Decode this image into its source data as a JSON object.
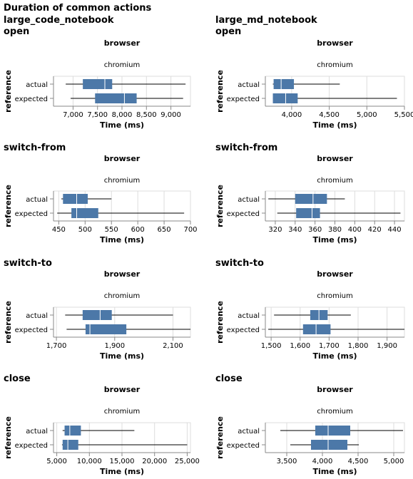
{
  "title": "Duration of common actions",
  "column_header_label": "browser",
  "column_value": "chromium",
  "x_axis_label": "Time (ms)",
  "y_axis_label": "reference",
  "categories": [
    "actual",
    "expected"
  ],
  "colors": {
    "box": "#4c78a8",
    "median": "#ffffff",
    "whisker": "#000000",
    "grid": "#dddddd",
    "border": "#dddddd"
  },
  "chart_data": [
    {
      "type": "boxplot",
      "notebook": "large_code_notebook",
      "action": "open",
      "ylabel": "reference",
      "xlabel": "Time (ms)",
      "xlim": [
        6600,
        9400
      ],
      "ticks": [
        7000,
        7500,
        8000,
        8500,
        9000
      ],
      "tick_labels": [
        "7,000",
        "7,500",
        "8,000",
        "8,500",
        "9,000"
      ],
      "boxes": [
        {
          "category": "actual",
          "min": 6850,
          "q1": 7200,
          "median": 7650,
          "q3": 7800,
          "max": 9300
        },
        {
          "category": "expected",
          "min": 6950,
          "q1": 7450,
          "median": 8050,
          "q3": 8300,
          "max": 9250
        }
      ]
    },
    {
      "type": "boxplot",
      "notebook": "large_md_notebook",
      "action": "open",
      "ylabel": "reference",
      "xlabel": "Time (ms)",
      "xlim": [
        3650,
        5500
      ],
      "ticks": [
        4000,
        4500,
        5000,
        5500
      ],
      "tick_labels": [
        "4,000",
        "4,500",
        "5,000",
        "5,500"
      ],
      "boxes": [
        {
          "category": "actual",
          "min": 3750,
          "q1": 3760,
          "median": 3860,
          "q3": 4030,
          "max": 4640
        },
        {
          "category": "expected",
          "min": 3750,
          "q1": 3750,
          "median": 3920,
          "q3": 4080,
          "max": 5400
        }
      ]
    },
    {
      "type": "boxplot",
      "notebook": "large_code_notebook",
      "action": "switch-from",
      "ylabel": "reference",
      "xlabel": "Time (ms)",
      "xlim": [
        440,
        700
      ],
      "ticks": [
        450,
        500,
        550,
        600,
        650,
        700
      ],
      "tick_labels": [
        "450",
        "500",
        "550",
        "600",
        "650",
        "700"
      ],
      "boxes": [
        {
          "category": "actual",
          "min": 455,
          "q1": 458,
          "median": 484,
          "q3": 505,
          "max": 550
        },
        {
          "category": "expected",
          "min": 447,
          "q1": 474,
          "median": 484,
          "q3": 525,
          "max": 688
        }
      ]
    },
    {
      "type": "boxplot",
      "notebook": "large_md_notebook",
      "action": "switch-from",
      "ylabel": "reference",
      "xlabel": "Time (ms)",
      "xlim": [
        310,
        450
      ],
      "ticks": [
        320,
        340,
        360,
        380,
        400,
        420,
        440
      ],
      "tick_labels": [
        "320",
        "340",
        "360",
        "380",
        "400",
        "420",
        "440"
      ],
      "boxes": [
        {
          "category": "actual",
          "min": 313,
          "q1": 340,
          "median": 358,
          "q3": 372,
          "max": 390
        },
        {
          "category": "expected",
          "min": 322,
          "q1": 341,
          "median": 357,
          "q3": 365,
          "max": 446
        }
      ]
    },
    {
      "type": "boxplot",
      "notebook": "large_code_notebook",
      "action": "switch-to",
      "ylabel": "reference",
      "xlabel": "Time (ms)",
      "xlim": [
        1690,
        2160
      ],
      "ticks": [
        1700,
        1900,
        2100
      ],
      "tick_labels": [
        "1,700",
        "1,900",
        "2,100"
      ],
      "boxes": [
        {
          "category": "actual",
          "min": 1730,
          "q1": 1790,
          "median": 1850,
          "q3": 1890,
          "max": 2100
        },
        {
          "category": "expected",
          "min": 1735,
          "q1": 1800,
          "median": 1815,
          "q3": 1940,
          "max": 2160
        }
      ]
    },
    {
      "type": "boxplot",
      "notebook": "large_md_notebook",
      "action": "switch-to",
      "ylabel": "reference",
      "xlabel": "Time (ms)",
      "xlim": [
        1480,
        1960
      ],
      "ticks": [
        1500,
        1600,
        1700,
        1800,
        1900
      ],
      "tick_labels": [
        "1,500",
        "1,600",
        "1,700",
        "1,800",
        "1,900"
      ],
      "boxes": [
        {
          "category": "actual",
          "min": 1510,
          "q1": 1635,
          "median": 1665,
          "q3": 1695,
          "max": 1775
        },
        {
          "category": "expected",
          "min": 1490,
          "q1": 1610,
          "median": 1655,
          "q3": 1705,
          "max": 1960
        }
      ]
    },
    {
      "type": "boxplot",
      "notebook": "large_code_notebook",
      "action": "close",
      "ylabel": "reference",
      "xlabel": "Time (ms)",
      "xlim": [
        4500,
        25500
      ],
      "ticks": [
        5000,
        10000,
        15000,
        20000,
        25000
      ],
      "tick_labels": [
        "5,000",
        "10,000",
        "15,000",
        "20,000",
        "25,000"
      ],
      "boxes": [
        {
          "category": "actual",
          "min": 5900,
          "q1": 6200,
          "median": 7000,
          "q3": 8700,
          "max": 16900
        },
        {
          "category": "expected",
          "min": 5800,
          "q1": 5900,
          "median": 6700,
          "q3": 8300,
          "max": 25000
        }
      ]
    },
    {
      "type": "boxplot",
      "notebook": "large_md_notebook",
      "action": "close",
      "ylabel": "reference",
      "xlabel": "Time (ms)",
      "xlim": [
        3200,
        5150
      ],
      "ticks": [
        3500,
        4000,
        4500,
        5000
      ],
      "tick_labels": [
        "3,500",
        "4,000",
        "4,500",
        "5,000"
      ],
      "boxes": [
        {
          "category": "actual",
          "min": 3410,
          "q1": 3900,
          "median": 4080,
          "q3": 4390,
          "max": 5130
        },
        {
          "category": "expected",
          "min": 3550,
          "q1": 3840,
          "median": 4080,
          "q3": 4350,
          "max": 4510
        }
      ]
    }
  ]
}
